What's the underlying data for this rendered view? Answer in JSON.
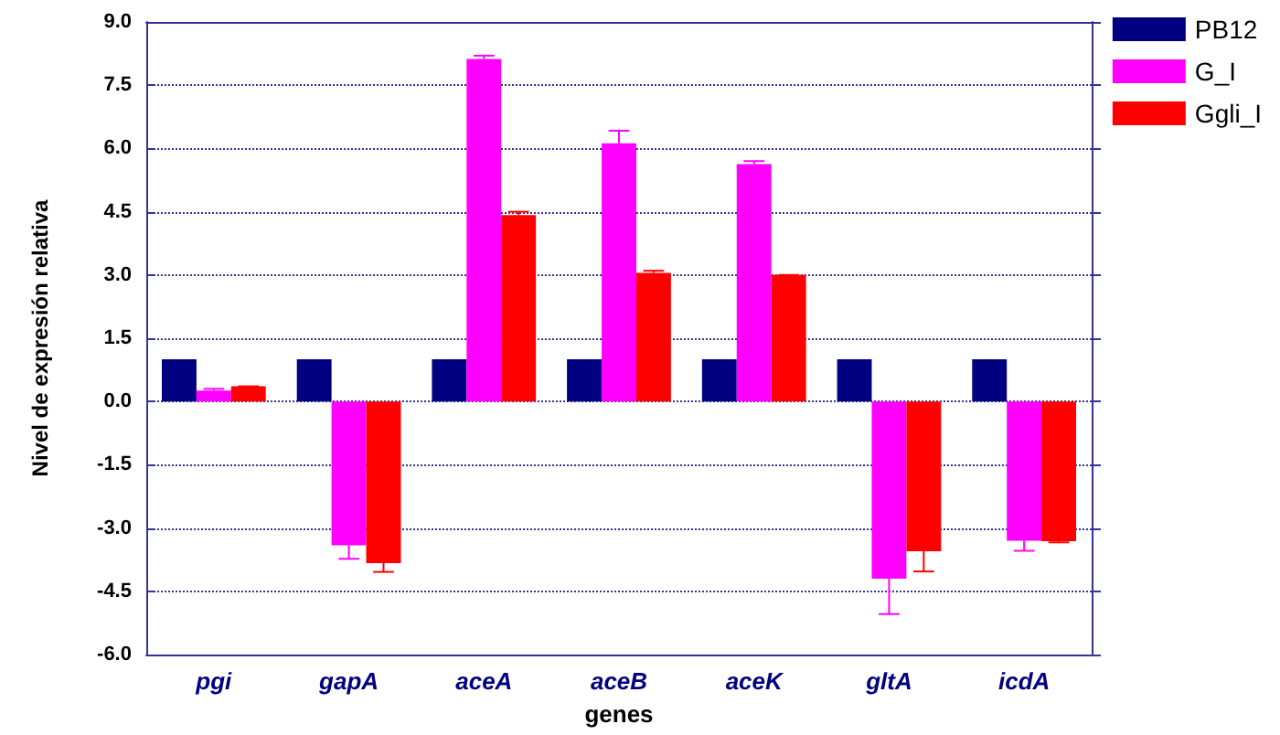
{
  "chart_data": {
    "type": "bar",
    "xlabel": "genes",
    "ylabel": "Nivel de expresión relativa",
    "categories": [
      "pgi",
      "gapA",
      "aceA",
      "aceB",
      "aceK",
      "gltA",
      "icdA"
    ],
    "series": [
      {
        "name": "PB12",
        "color": "#000080",
        "values": [
          1.0,
          1.0,
          1.0,
          1.0,
          1.0,
          1.0,
          1.0
        ]
      },
      {
        "name": "G_I",
        "color": "#ff00ff",
        "values": [
          0.26,
          -3.41,
          8.12,
          6.12,
          5.63,
          -4.2,
          -3.3
        ],
        "errors": [
          [
            0.26,
            0.3
          ],
          [
            -3.73,
            -3.41
          ],
          [
            8.12,
            8.2
          ],
          [
            6.12,
            6.42
          ],
          [
            5.63,
            5.7
          ],
          [
            -5.04,
            -4.2
          ],
          [
            -3.54,
            -3.3
          ]
        ]
      },
      {
        "name": "Ggli_I",
        "color": "#ff0000",
        "values": [
          0.36,
          -3.83,
          4.42,
          3.05,
          3.0,
          -3.55,
          -3.31
        ],
        "errors": [
          [
            0.36,
            0.36
          ],
          [
            -4.04,
            -3.83
          ],
          [
            4.42,
            4.5
          ],
          [
            3.05,
            3.1
          ],
          [
            3.0,
            3.0
          ],
          [
            -4.03,
            -3.55
          ],
          [
            -3.34,
            -3.31
          ]
        ]
      }
    ],
    "ylim": [
      -6,
      9
    ],
    "yticks": [
      {
        "value": -6,
        "label": "-6.0"
      },
      {
        "value": -4.5,
        "label": "-4.5"
      },
      {
        "value": -3,
        "label": "-3.0"
      },
      {
        "value": -1.5,
        "label": "-1.5"
      },
      {
        "value": 0,
        "label": "0.0"
      },
      {
        "value": 1.5,
        "label": "1.5"
      },
      {
        "value": 3,
        "label": "3.0"
      },
      {
        "value": 4.5,
        "label": "4.5"
      },
      {
        "value": 6,
        "label": "6.0"
      },
      {
        "value": 7.5,
        "label": "7.5"
      },
      {
        "value": 9,
        "label": "9.0"
      }
    ],
    "grid": "y",
    "legend": "top right"
  }
}
